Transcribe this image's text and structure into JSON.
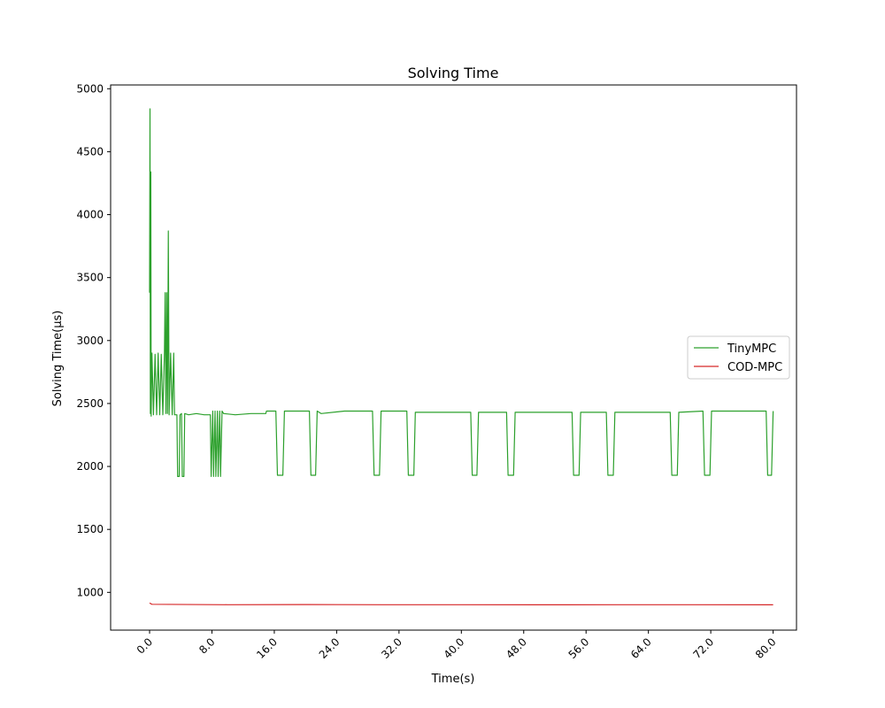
{
  "chart_data": {
    "type": "line",
    "title": "Solving Time",
    "xlabel": "Time(s)",
    "ylabel": "Solving Time(μs)",
    "xlim": [
      -5,
      83
    ],
    "ylim": [
      700,
      5030
    ],
    "xticks": [
      0,
      8,
      16,
      24,
      32,
      40,
      48,
      56,
      64,
      72,
      80
    ],
    "xtick_labels": [
      "0.0",
      "8.0",
      "16.0",
      "24.0",
      "32.0",
      "40.0",
      "48.0",
      "56.0",
      "64.0",
      "72.0",
      "80.0"
    ],
    "yticks": [
      1000,
      1500,
      2000,
      2500,
      3000,
      3500,
      4000,
      4500,
      5000
    ],
    "ytick_labels": [
      "1000",
      "1500",
      "2000",
      "2500",
      "3000",
      "3500",
      "4000",
      "4500",
      "5000"
    ],
    "grid": false,
    "legend_position": "center-right",
    "series": [
      {
        "name": "TinyMPC",
        "color": "#2ca02c",
        "points": [
          [
            0.0,
            3380
          ],
          [
            0.05,
            4840
          ],
          [
            0.1,
            2420
          ],
          [
            0.15,
            4340
          ],
          [
            0.2,
            2400
          ],
          [
            0.3,
            2900
          ],
          [
            0.5,
            2410
          ],
          [
            0.7,
            2890
          ],
          [
            0.9,
            2410
          ],
          [
            1.1,
            2900
          ],
          [
            1.3,
            2410
          ],
          [
            1.5,
            2890
          ],
          [
            1.7,
            2410
          ],
          [
            1.9,
            2900
          ],
          [
            2.0,
            3380
          ],
          [
            2.1,
            2420
          ],
          [
            2.2,
            3380
          ],
          [
            2.3,
            2420
          ],
          [
            2.4,
            3870
          ],
          [
            2.5,
            2410
          ],
          [
            2.7,
            2900
          ],
          [
            2.9,
            2410
          ],
          [
            3.1,
            2900
          ],
          [
            3.2,
            2410
          ],
          [
            3.5,
            2410
          ],
          [
            3.6,
            1920
          ],
          [
            3.8,
            1920
          ],
          [
            3.9,
            2410
          ],
          [
            4.1,
            2420
          ],
          [
            4.2,
            1920
          ],
          [
            4.4,
            1920
          ],
          [
            4.5,
            2420
          ],
          [
            5.0,
            2410
          ],
          [
            6.0,
            2420
          ],
          [
            7.0,
            2410
          ],
          [
            7.8,
            2410
          ],
          [
            7.9,
            1920
          ],
          [
            8.1,
            2440
          ],
          [
            8.2,
            1920
          ],
          [
            8.4,
            2440
          ],
          [
            8.5,
            1920
          ],
          [
            8.7,
            2440
          ],
          [
            8.8,
            1920
          ],
          [
            9.0,
            2440
          ],
          [
            9.1,
            1920
          ],
          [
            9.3,
            2440
          ],
          [
            9.5,
            2420
          ],
          [
            11.0,
            2410
          ],
          [
            13.0,
            2420
          ],
          [
            14.9,
            2420
          ],
          [
            15.0,
            2440
          ],
          [
            16.2,
            2440
          ],
          [
            16.4,
            1930
          ],
          [
            17.1,
            1930
          ],
          [
            17.3,
            2440
          ],
          [
            20.5,
            2440
          ],
          [
            20.7,
            1930
          ],
          [
            21.3,
            1930
          ],
          [
            21.5,
            2440
          ],
          [
            22.0,
            2420
          ],
          [
            25.0,
            2440
          ],
          [
            28.6,
            2440
          ],
          [
            28.8,
            1930
          ],
          [
            29.5,
            1930
          ],
          [
            29.7,
            2440
          ],
          [
            33.0,
            2440
          ],
          [
            33.2,
            1930
          ],
          [
            33.9,
            1930
          ],
          [
            34.1,
            2430
          ],
          [
            41.2,
            2430
          ],
          [
            41.4,
            1930
          ],
          [
            42.0,
            1930
          ],
          [
            42.2,
            2430
          ],
          [
            45.8,
            2430
          ],
          [
            46.0,
            1930
          ],
          [
            46.7,
            1930
          ],
          [
            46.9,
            2430
          ],
          [
            54.2,
            2430
          ],
          [
            54.4,
            1930
          ],
          [
            55.1,
            1930
          ],
          [
            55.3,
            2430
          ],
          [
            58.6,
            2430
          ],
          [
            58.8,
            1930
          ],
          [
            59.5,
            1930
          ],
          [
            59.7,
            2430
          ],
          [
            66.8,
            2430
          ],
          [
            67.0,
            1930
          ],
          [
            67.7,
            1930
          ],
          [
            67.9,
            2430
          ],
          [
            71.0,
            2440
          ],
          [
            71.2,
            1930
          ],
          [
            71.9,
            1930
          ],
          [
            72.1,
            2440
          ],
          [
            79.1,
            2440
          ],
          [
            79.3,
            1930
          ],
          [
            79.8,
            1930
          ],
          [
            80.0,
            2440
          ]
        ]
      },
      {
        "name": "COD-MPC",
        "color": "#d62728",
        "points": [
          [
            0.0,
            915
          ],
          [
            0.3,
            905
          ],
          [
            10.0,
            902
          ],
          [
            20.0,
            903
          ],
          [
            30.0,
            902
          ],
          [
            40.0,
            902
          ],
          [
            50.0,
            901
          ],
          [
            60.0,
            902
          ],
          [
            70.0,
            902
          ],
          [
            80.0,
            901
          ]
        ]
      }
    ]
  }
}
